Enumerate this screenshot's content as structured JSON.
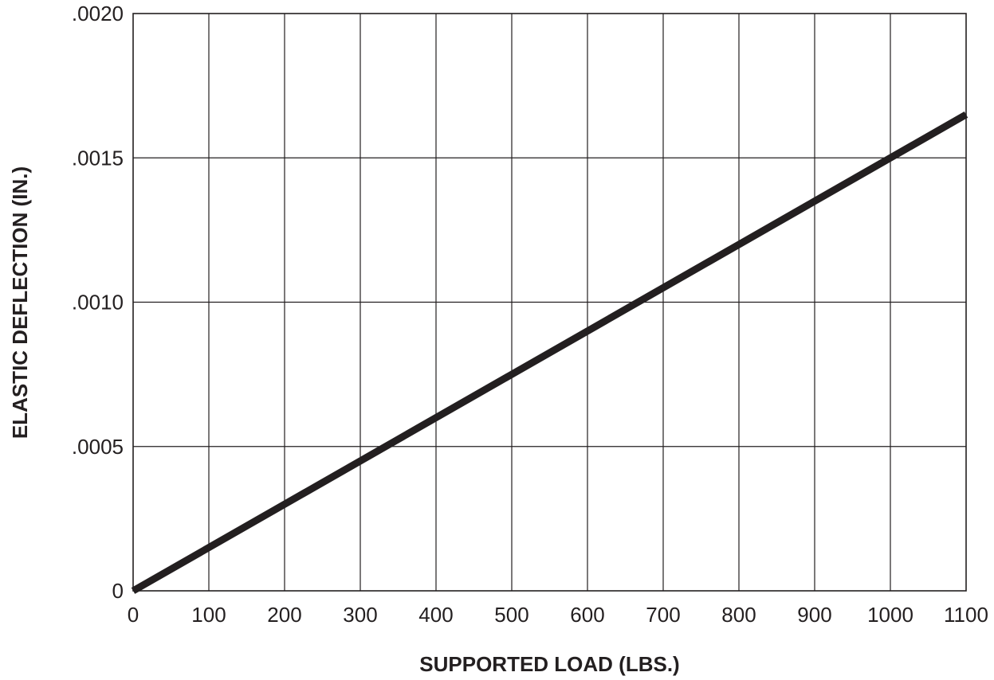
{
  "chart_data": {
    "type": "line",
    "title": "",
    "xlabel": "SUPPORTED LOAD (LBS.)",
    "ylabel": "ELASTIC DEFLECTION (IN.)",
    "xlim": [
      0,
      1100
    ],
    "ylim": [
      0,
      0.002
    ],
    "grid": true,
    "x_ticks": [
      {
        "value": 0,
        "label": "0"
      },
      {
        "value": 100,
        "label": "100"
      },
      {
        "value": 200,
        "label": "200"
      },
      {
        "value": 300,
        "label": "300"
      },
      {
        "value": 400,
        "label": "400"
      },
      {
        "value": 500,
        "label": "500"
      },
      {
        "value": 600,
        "label": "600"
      },
      {
        "value": 700,
        "label": "700"
      },
      {
        "value": 800,
        "label": "800"
      },
      {
        "value": 900,
        "label": "900"
      },
      {
        "value": 1000,
        "label": "1000"
      },
      {
        "value": 1100,
        "label": "1100"
      }
    ],
    "y_ticks": [
      {
        "value": 0,
        "label": "0"
      },
      {
        "value": 0.0005,
        "label": ".0005"
      },
      {
        "value": 0.001,
        "label": ".0010"
      },
      {
        "value": 0.0015,
        "label": ".0015"
      },
      {
        "value": 0.002,
        "label": ".0020"
      }
    ],
    "series": [
      {
        "color": "#231f20",
        "x": [
          0,
          1100
        ],
        "y": [
          0,
          0.00165
        ]
      }
    ]
  }
}
